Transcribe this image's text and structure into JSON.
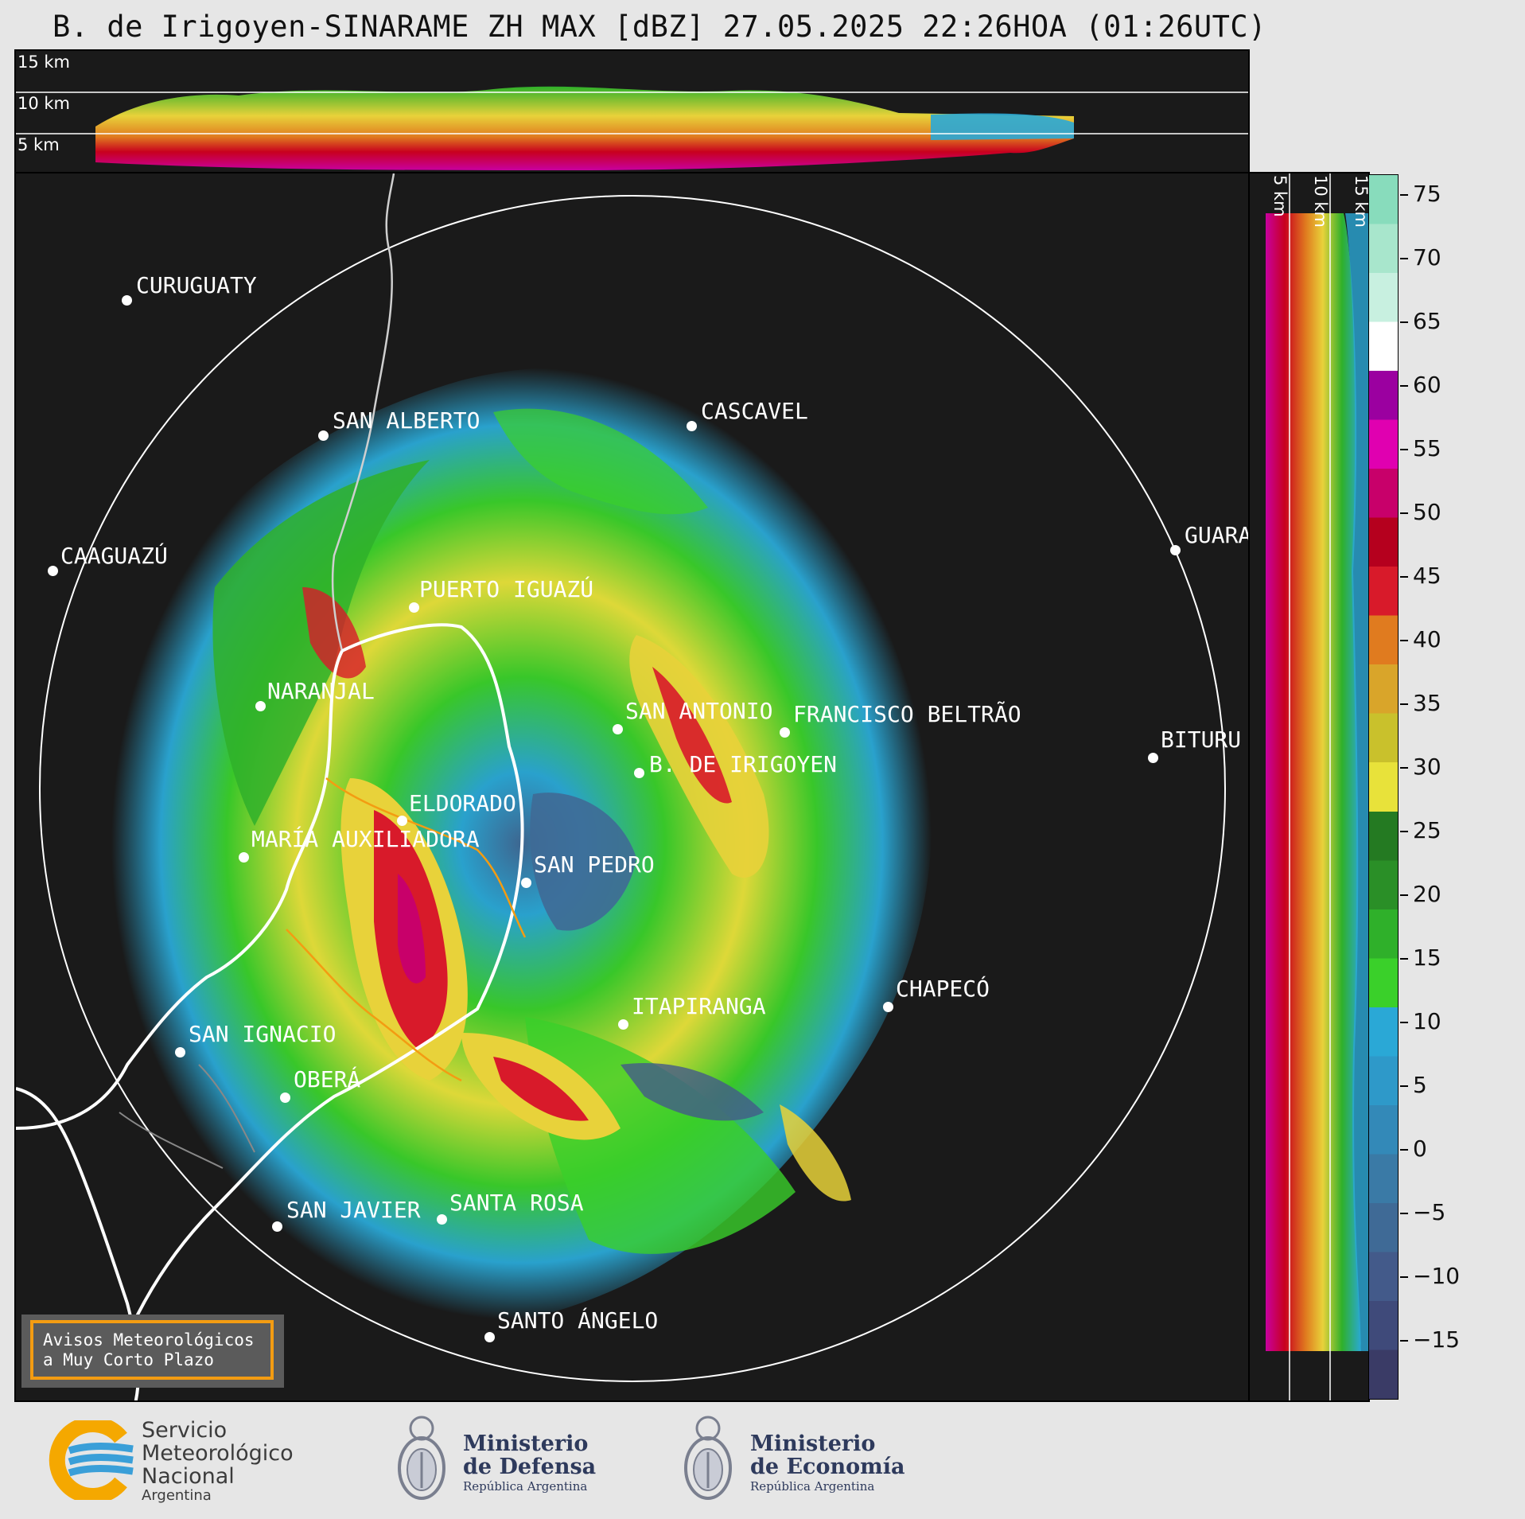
{
  "title": "B. de Irigoyen-SINARAME ZH MAX [dBZ] 27.05.2025 22:26HOA (01:26UTC)",
  "altitude_labels": [
    "15 km",
    "10 km",
    "5 km"
  ],
  "side_altitude_labels": [
    "5 km",
    "10 km",
    "15 km"
  ],
  "colorbar": {
    "unit": "dBZ",
    "ticks": [
      "75",
      "70",
      "65",
      "60",
      "55",
      "50",
      "45",
      "40",
      "35",
      "30",
      "25",
      "20",
      "15",
      "10",
      "5",
      "0",
      "−5",
      "−10",
      "−15"
    ],
    "colors": [
      "#3a3b66",
      "#3f4a7a",
      "#435a8a",
      "#3f6a96",
      "#3a7aa6",
      "#3389b8",
      "#2e99c9",
      "#2aa8d6",
      "#3ad02a",
      "#2fb02a",
      "#2a8f27",
      "#247a22",
      "#e8e23a",
      "#c9c12c",
      "#d9a52a",
      "#e07b1f",
      "#d81a2a",
      "#b5001e",
      "#c8006a",
      "#e000b0",
      "#9b00a0",
      "#ffffff",
      "#c8f0e0",
      "#a8e6cc",
      "#88dcbc"
    ]
  },
  "cities": [
    {
      "name": "CURUGUATY"
    },
    {
      "name": "SAN ALBERTO"
    },
    {
      "name": "CASCAVEL"
    },
    {
      "name": "CAAGUAZÚ"
    },
    {
      "name": "GUARA"
    },
    {
      "name": "PUERTO IGUAZÚ"
    },
    {
      "name": "NARANJAL"
    },
    {
      "name": "SAN ANTONIO"
    },
    {
      "name": "FRANCISCO BELTRÃO"
    },
    {
      "name": "BITURU"
    },
    {
      "name": "B. DE IRIGOYEN"
    },
    {
      "name": "ELDORADO"
    },
    {
      "name": "MARÍA AUXILIADORA"
    },
    {
      "name": "SAN PEDRO"
    },
    {
      "name": "CHAPECÓ"
    },
    {
      "name": "ITAPIRANGA"
    },
    {
      "name": "SAN IGNACIO"
    },
    {
      "name": "OBERÁ"
    },
    {
      "name": "SAN JAVIER"
    },
    {
      "name": "SANTA ROSA"
    },
    {
      "name": "SANTO ÁNGELO"
    }
  ],
  "notice": {
    "line1": "Avisos Meteorológicos",
    "line2": "a Muy Corto Plazo"
  },
  "logos": {
    "smn": {
      "line1": "Servicio",
      "line2": "Meteorológico",
      "line3": "Nacional",
      "line4": "Argentina"
    },
    "defensa": {
      "line1": "Ministerio",
      "line2": "de Defensa",
      "line3": "República Argentina"
    },
    "economia": {
      "line1": "Ministerio",
      "line2": "de Economía",
      "line3": "República Argentina"
    }
  }
}
